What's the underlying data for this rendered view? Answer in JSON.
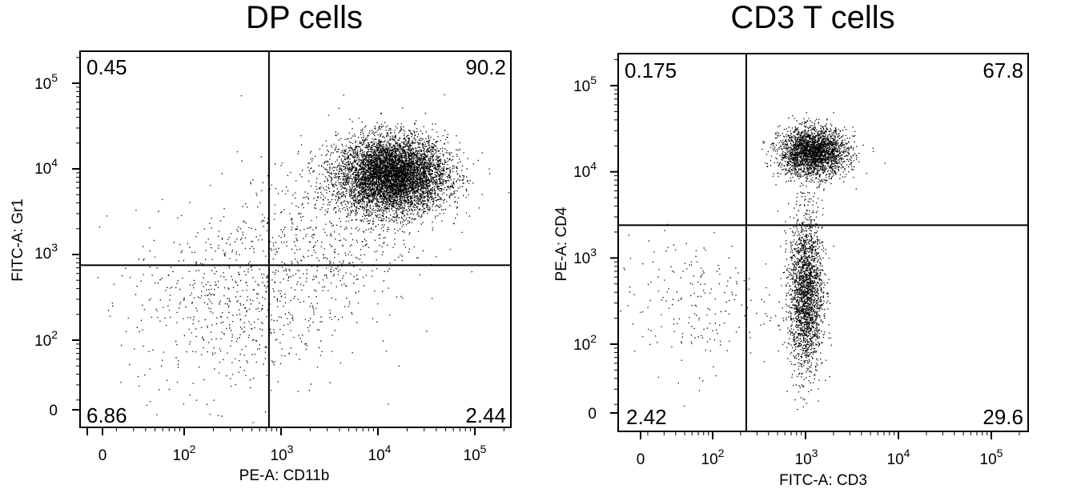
{
  "chart_data": [
    {
      "type": "scatter",
      "title": "DP cells",
      "xlabel": "PE-A: CD11b",
      "ylabel": "FITC-A: Gr1",
      "x_scale": "log",
      "y_scale": "log",
      "x_ticks": [
        "0",
        "10^2",
        "10^3",
        "10^4",
        "10^5"
      ],
      "y_ticks": [
        "0",
        "10^2",
        "10^3",
        "10^4",
        "10^5"
      ],
      "gate": {
        "x": 750,
        "y": 750
      },
      "quadrants": {
        "upper_left": "0.45",
        "upper_right": "90.2",
        "lower_left": "6.86",
        "lower_right": "2.44"
      },
      "populations": [
        {
          "x_center": 14000,
          "y_center": 8500,
          "spread_decades_x": 0.28,
          "spread_decades_y": 0.22,
          "count": 6500
        },
        {
          "x_center": 350,
          "y_center": 280,
          "spread_decades_x": 0.55,
          "spread_decades_y": 0.55,
          "count": 700
        },
        {
          "x_center": 3000,
          "y_center": 1800,
          "spread_decades_x": 0.45,
          "spread_decades_y": 0.45,
          "count": 500
        }
      ],
      "grid": false,
      "legend": "none"
    },
    {
      "type": "scatter",
      "title": "CD3 T cells",
      "xlabel": "FITC-A: CD3",
      "ylabel": "PE-A: CD4",
      "x_scale": "log",
      "y_scale": "log",
      "x_ticks": [
        "0",
        "10^2",
        "10^3",
        "10^4",
        "10^5"
      ],
      "y_ticks": [
        "0",
        "10^2",
        "10^3",
        "10^4",
        "10^5"
      ],
      "gate": {
        "x": 230,
        "y": 2400
      },
      "quadrants": {
        "upper_left": "0.175",
        "upper_right": "67.8",
        "lower_left": "2.42",
        "lower_right": "29.6"
      },
      "populations": [
        {
          "x_center": 1200,
          "y_center": 17000,
          "spread_decades_x": 0.18,
          "spread_decades_y": 0.14,
          "count": 2600
        },
        {
          "x_center": 1000,
          "y_center": 400,
          "spread_decades_x": 0.09,
          "spread_decades_y": 0.45,
          "count": 2200
        },
        {
          "x_center": 60,
          "y_center": 300,
          "spread_decades_x": 0.45,
          "spread_decades_y": 0.4,
          "count": 220
        }
      ],
      "grid": false,
      "legend": "none"
    }
  ]
}
